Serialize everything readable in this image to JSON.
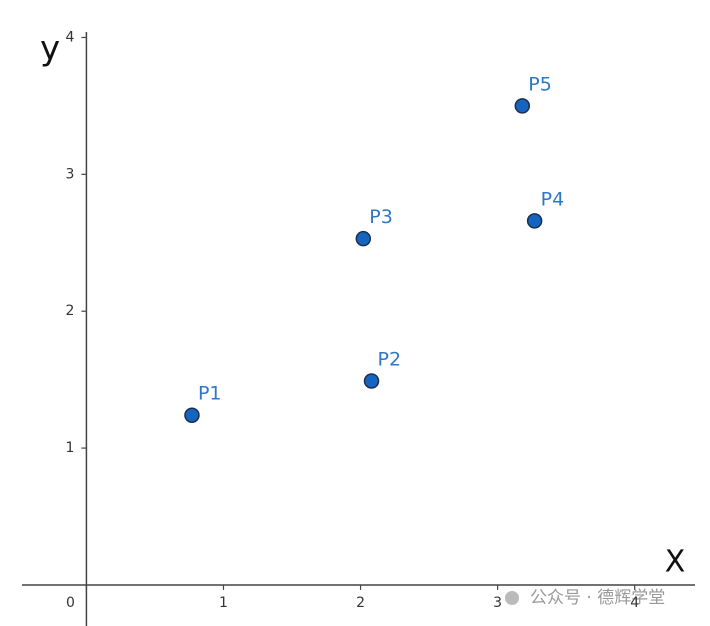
{
  "chart_data": {
    "type": "scatter",
    "x_label": "X",
    "y_label": "y",
    "point_labels": [
      "P1",
      "P2",
      "P3",
      "P4",
      "P5"
    ],
    "x": [
      0.77,
      2.08,
      2.02,
      3.27,
      3.18
    ],
    "values": [
      1.24,
      1.49,
      2.53,
      2.66,
      3.5
    ],
    "color": "#1565c0",
    "edge_color": "#1c2f4f",
    "label_color": "#2f78c8",
    "xlim": [
      -0.47,
      4.44
    ],
    "ylim": [
      -0.3,
      4.04
    ],
    "xticks": [
      0,
      1,
      2,
      3,
      4
    ],
    "yticks": [
      1,
      2,
      3,
      4
    ],
    "watermark": "公众号 · 德辉学堂"
  }
}
